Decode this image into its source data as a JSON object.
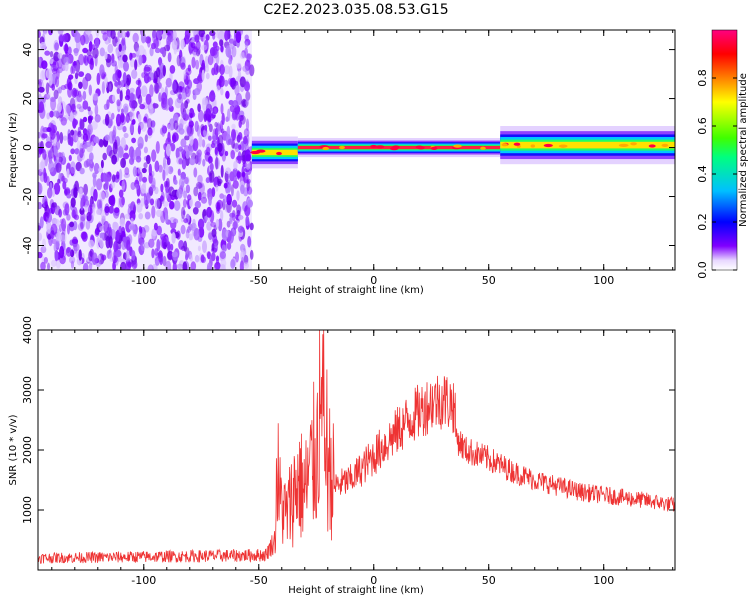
{
  "title": "C2E2.2023.035.08.53.G15",
  "chart_data": [
    {
      "type": "heatmap",
      "xlabel": "Height of straight line (km)",
      "ylabel": "Frequency (Hz)",
      "xlim": [
        -146,
        131
      ],
      "ylim": [
        -50,
        48
      ],
      "x_ticks": [
        -100,
        -50,
        0,
        50,
        100
      ],
      "x_tick_labels": [
        "-100",
        "-50",
        "0",
        "50",
        "100"
      ],
      "y_ticks": [
        -40,
        -20,
        0,
        20,
        40
      ],
      "y_tick_labels": [
        "-40",
        "-20",
        "0",
        "20",
        "40"
      ],
      "noise_region_x": [
        -146,
        -53
      ],
      "signal_band": {
        "segments": [
          {
            "x": [
              -53,
              -33
            ],
            "center_hz": -2,
            "halfwidth_hz": 2.5,
            "peak_amplitude": 0.75
          },
          {
            "x": [
              -33,
              55
            ],
            "center_hz": 0,
            "halfwidth_hz": 1.5,
            "peak_amplitude": 0.95
          },
          {
            "x": [
              55,
              131
            ],
            "center_hz": 1,
            "halfwidth_hz": 3,
            "peak_amplitude": 0.7
          }
        ]
      },
      "colorbar": {
        "label": "Normalized spectral amplitude",
        "range": [
          0,
          1
        ],
        "ticks": [
          0.0,
          0.2,
          0.4,
          0.6,
          0.8
        ],
        "tick_labels": [
          "0.0",
          "0.2",
          "0.4",
          "0.6",
          "0.8"
        ],
        "colors": [
          "#ffffff",
          "#8000ff",
          "#0000ff",
          "#00c0ff",
          "#00ff80",
          "#40ff00",
          "#ffff00",
          "#ff8000",
          "#ff0000",
          "#ff0080"
        ]
      }
    },
    {
      "type": "line",
      "xlabel": "Height of straight line (km)",
      "ylabel": "SNR (10 * v/v)",
      "xlim": [
        -146,
        131
      ],
      "ylim": [
        0,
        4000
      ],
      "x_ticks": [
        -100,
        -50,
        0,
        50,
        100
      ],
      "x_tick_labels": [
        "-100",
        "-50",
        "0",
        "50",
        "100"
      ],
      "y_ticks": [
        1000,
        2000,
        3000,
        4000
      ],
      "y_tick_labels": [
        "1000",
        "2000",
        "3000",
        "4000"
      ],
      "series": [
        {
          "color": "#ee3333",
          "x": [
            -146,
            -120,
            -100,
            -80,
            -60,
            -47,
            -43,
            -42,
            -41,
            -38,
            -33,
            -30,
            -25,
            -21,
            -20,
            -17,
            -10,
            -5,
            0,
            5,
            10,
            15,
            20,
            25,
            30,
            35,
            36,
            40,
            50,
            60,
            70,
            80,
            90,
            100,
            110,
            120,
            131
          ],
          "y": [
            200,
            210,
            220,
            230,
            240,
            250,
            500,
            1800,
            1200,
            900,
            1500,
            1300,
            2000,
            2500,
            1800,
            1400,
            1500,
            1700,
            1900,
            2100,
            2300,
            2500,
            2650,
            2800,
            2850,
            2750,
            2200,
            2000,
            1850,
            1650,
            1500,
            1400,
            1300,
            1250,
            1200,
            1150,
            1080
          ]
        }
      ]
    }
  ]
}
